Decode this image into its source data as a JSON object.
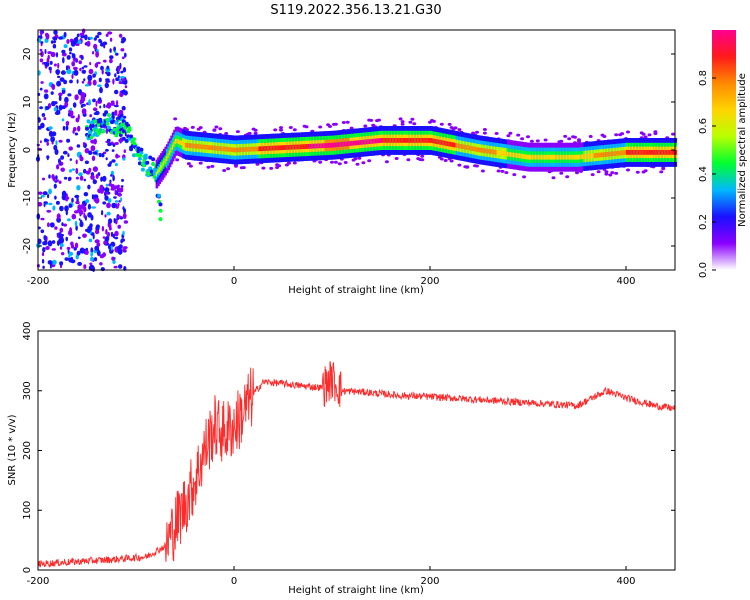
{
  "title": "S119.2022.356.13.21.G30",
  "chart_data": [
    {
      "type": "heatmap",
      "name": "spectrogram",
      "xlabel": "Height of straight line (km)",
      "ylabel": "Frequency (Hz)",
      "xlim": [
        -200,
        450
      ],
      "ylim": [
        -25,
        25
      ],
      "xticks": [
        "-200",
        "0",
        "200",
        "400"
      ],
      "yticks": [
        "20",
        "10",
        "0",
        "-10",
        "-20"
      ],
      "colorbar": {
        "label": "Normalized spectral amplitude",
        "range": [
          0,
          1
        ],
        "ticks": [
          "0.0",
          "0.2",
          "0.4",
          "0.6",
          "0.8"
        ],
        "colors": [
          "#ffffff",
          "#8a00ff",
          "#1a10ff",
          "#00b8ff",
          "#00ff30",
          "#b8ff00",
          "#ffd400",
          "#ff8a00",
          "#ff1a1a",
          "#ff0090"
        ]
      },
      "ridge": {
        "x": [
          -80,
          -70,
          -60,
          -50,
          0,
          50,
          100,
          150,
          200,
          250,
          300,
          350,
          400,
          450
        ],
        "y": [
          -5,
          -2,
          2,
          1,
          0,
          0.5,
          1,
          2,
          2,
          0,
          -1.5,
          -1.5,
          -0.5,
          -0.5
        ],
        "peak_amplitude": [
          0.5,
          0.6,
          0.6,
          0.7,
          0.75,
          0.85,
          0.95,
          0.9,
          0.85,
          0.75,
          0.6,
          0.65,
          0.8,
          0.9
        ]
      },
      "early_branch": {
        "x": [
          -150,
          -130,
          -110,
          -100,
          -90,
          -80,
          -75
        ],
        "y": [
          4,
          6,
          4,
          0,
          -3,
          -4,
          -13
        ]
      },
      "noise_region_x": [
        -200,
        -110
      ]
    },
    {
      "type": "line",
      "name": "snr",
      "xlabel": "Height of straight line (km)",
      "ylabel": "SNR (10 * v/v)",
      "xlim": [
        -200,
        450
      ],
      "ylim": [
        0,
        400
      ],
      "xticks": [
        "-200",
        "0",
        "200",
        "400"
      ],
      "yticks": [
        "400",
        "300",
        "200",
        "100",
        "0"
      ],
      "color": "#ff2a2a",
      "series": [
        {
          "x": [
            -200,
            -150,
            -120,
            -90,
            -70,
            -60,
            -50,
            -40,
            -30,
            -20,
            -10,
            0,
            10,
            20,
            30,
            50,
            70,
            90,
            100,
            110,
            130,
            150,
            170,
            200,
            250,
            300,
            350,
            380,
            400,
            430,
            450
          ],
          "y": [
            10,
            15,
            18,
            22,
            40,
            75,
            110,
            150,
            200,
            240,
            230,
            240,
            265,
            295,
            315,
            312,
            308,
            305,
            320,
            300,
            298,
            295,
            292,
            290,
            285,
            280,
            275,
            300,
            288,
            275,
            270
          ]
        }
      ]
    }
  ]
}
